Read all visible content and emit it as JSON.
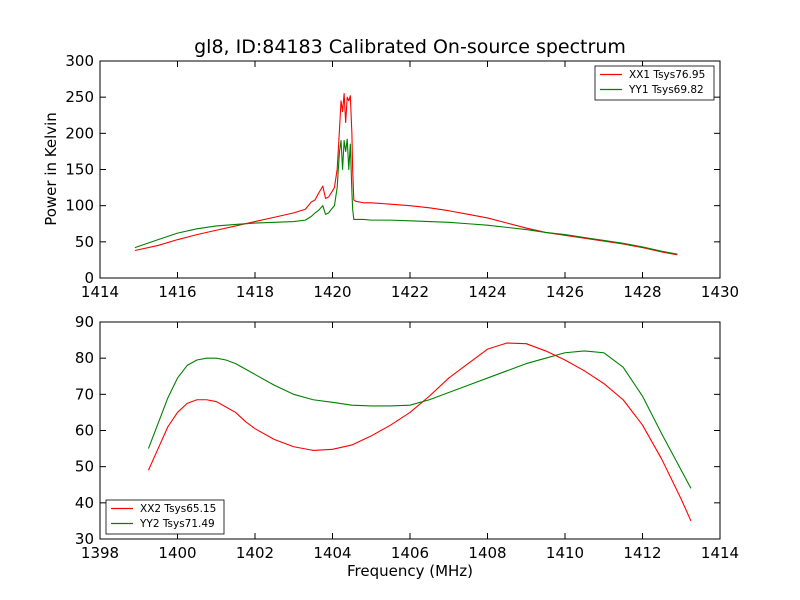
{
  "chart_data": [
    {
      "type": "line",
      "title": "gl8, ID:84183 Calibrated On-source spectrum",
      "xlabel": "",
      "ylabel": "Power in Kelvin",
      "xlim": [
        1414,
        1430
      ],
      "ylim": [
        0,
        300
      ],
      "xticks": [
        1414,
        1416,
        1418,
        1420,
        1422,
        1424,
        1426,
        1428,
        1430
      ],
      "yticks": [
        0,
        50,
        100,
        150,
        200,
        250,
        300
      ],
      "grid": false,
      "legend_position": "top-right",
      "series": [
        {
          "name": "XX1 Tsys76.95",
          "color": "#ff0000",
          "x": [
            1414.9,
            1415.5,
            1416.0,
            1416.5,
            1417.0,
            1417.5,
            1418.0,
            1418.5,
            1419.0,
            1419.3,
            1419.45,
            1419.55,
            1419.65,
            1419.75,
            1419.82,
            1419.9,
            1419.97,
            1420.05,
            1420.12,
            1420.18,
            1420.22,
            1420.26,
            1420.3,
            1420.34,
            1420.38,
            1420.42,
            1420.46,
            1420.5,
            1420.52,
            1420.55,
            1420.6,
            1420.8,
            1421.0,
            1421.5,
            1422.0,
            1422.5,
            1423.0,
            1423.5,
            1424.0,
            1424.5,
            1425.0,
            1425.5,
            1426.0,
            1426.5,
            1427.0,
            1427.5,
            1428.0,
            1428.5,
            1428.9
          ],
          "y": [
            38,
            45,
            53,
            60,
            66,
            72,
            78,
            84,
            90,
            95,
            105,
            108,
            118,
            127,
            110,
            112,
            118,
            125,
            150,
            205,
            245,
            230,
            255,
            215,
            250,
            245,
            252,
            200,
            150,
            108,
            106,
            104,
            104,
            102,
            100,
            97,
            93,
            88,
            83,
            76,
            69,
            63,
            59,
            55,
            51,
            47,
            42,
            36,
            32
          ]
        },
        {
          "name": "YY1 Tsys69.82",
          "color": "#008000",
          "x": [
            1414.9,
            1415.5,
            1416.0,
            1416.5,
            1417.0,
            1417.5,
            1418.0,
            1418.5,
            1419.0,
            1419.3,
            1419.45,
            1419.55,
            1419.65,
            1419.75,
            1419.82,
            1419.9,
            1419.97,
            1420.05,
            1420.12,
            1420.18,
            1420.22,
            1420.26,
            1420.3,
            1420.34,
            1420.38,
            1420.42,
            1420.46,
            1420.5,
            1420.52,
            1420.55,
            1420.6,
            1420.8,
            1421.0,
            1421.5,
            1422.0,
            1422.5,
            1423.0,
            1423.5,
            1424.0,
            1424.5,
            1425.0,
            1425.5,
            1426.0,
            1426.5,
            1427.0,
            1427.5,
            1428.0,
            1428.5,
            1428.9
          ],
          "y": [
            42,
            53,
            62,
            68,
            72,
            74,
            76,
            77,
            78,
            80,
            85,
            90,
            94,
            100,
            88,
            90,
            95,
            100,
            125,
            175,
            190,
            150,
            190,
            175,
            192,
            150,
            185,
            120,
            95,
            81,
            81,
            81,
            80,
            80,
            79,
            78,
            77,
            75,
            73,
            70,
            67,
            63,
            60,
            56,
            52,
            48,
            43,
            37,
            33
          ]
        }
      ]
    },
    {
      "type": "line",
      "title": "",
      "xlabel": "Frequency (MHz)",
      "ylabel": "",
      "xlim": [
        1398,
        1414
      ],
      "ylim": [
        30,
        90
      ],
      "xticks": [
        1398,
        1400,
        1402,
        1404,
        1406,
        1408,
        1410,
        1412,
        1414
      ],
      "yticks": [
        30,
        40,
        50,
        60,
        70,
        80,
        90
      ],
      "grid": false,
      "legend_position": "bottom-left",
      "series": [
        {
          "name": "XX2 Tsys65.15",
          "color": "#ff0000",
          "x": [
            1399.25,
            1399.5,
            1399.75,
            1400.0,
            1400.25,
            1400.5,
            1400.75,
            1401.0,
            1401.25,
            1401.5,
            1401.75,
            1402.0,
            1402.5,
            1403.0,
            1403.5,
            1404.0,
            1404.5,
            1405.0,
            1405.5,
            1406.0,
            1406.5,
            1407.0,
            1407.5,
            1408.0,
            1408.5,
            1409.0,
            1409.5,
            1410.0,
            1410.5,
            1411.0,
            1411.5,
            1412.0,
            1412.5,
            1413.0,
            1413.25
          ],
          "y": [
            49,
            55,
            61,
            65,
            67.5,
            68.5,
            68.5,
            68,
            66.5,
            65,
            62.5,
            60.5,
            57.5,
            55.5,
            54.5,
            54.8,
            56,
            58.5,
            61.5,
            65,
            69.5,
            74.5,
            78.5,
            82.5,
            84.2,
            84,
            82,
            79.5,
            76.5,
            73,
            68.5,
            61.5,
            52,
            41,
            35
          ]
        },
        {
          "name": "YY2 Tsys71.49",
          "color": "#008000",
          "x": [
            1399.25,
            1399.5,
            1399.75,
            1400.0,
            1400.25,
            1400.5,
            1400.75,
            1401.0,
            1401.25,
            1401.5,
            1401.75,
            1402.0,
            1402.5,
            1403.0,
            1403.5,
            1404.0,
            1404.5,
            1405.0,
            1405.5,
            1406.0,
            1406.5,
            1407.0,
            1407.5,
            1408.0,
            1408.5,
            1409.0,
            1409.5,
            1410.0,
            1410.5,
            1411.0,
            1411.5,
            1412.0,
            1412.5,
            1413.0,
            1413.25
          ],
          "y": [
            55,
            62,
            69,
            74.5,
            78,
            79.5,
            80,
            80,
            79.5,
            78.5,
            77,
            75.5,
            72.5,
            70,
            68.5,
            67.8,
            67,
            66.8,
            66.8,
            67,
            68.5,
            70.5,
            72.5,
            74.5,
            76.5,
            78.5,
            80,
            81.5,
            82,
            81.5,
            77.5,
            69.5,
            59,
            49,
            44
          ]
        }
      ]
    }
  ]
}
